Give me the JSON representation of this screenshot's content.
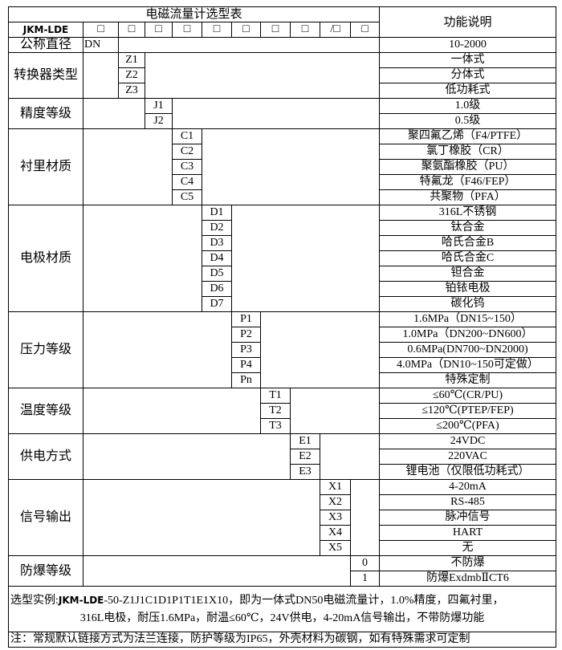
{
  "header": {
    "title": "电磁流量计选型表",
    "function_header": "功能说明",
    "model_prefix": "JKM-LDE",
    "boxes": [
      "□",
      "□",
      "□",
      "□",
      "□",
      "□",
      "□",
      "□",
      "/□",
      "□"
    ]
  },
  "sections": [
    {
      "label": "公称直径",
      "col": 0,
      "rows": [
        {
          "code": "DN",
          "desc": "10-2000"
        }
      ]
    },
    {
      "label": "转换器类型",
      "col": 1,
      "rows": [
        {
          "code": "Z1",
          "desc": "一体式"
        },
        {
          "code": "Z2",
          "desc": "分体式"
        },
        {
          "code": "Z3",
          "desc": "低功耗式"
        }
      ]
    },
    {
      "label": "精度等级",
      "col": 2,
      "rows": [
        {
          "code": "J1",
          "desc": "1.0级"
        },
        {
          "code": "J2",
          "desc": "0.5级"
        }
      ]
    },
    {
      "label": "衬里材质",
      "col": 3,
      "rows": [
        {
          "code": "C1",
          "desc": "聚四氟乙烯（F4/PTFE）"
        },
        {
          "code": "C2",
          "desc": "氯丁橡胶（CR）"
        },
        {
          "code": "C3",
          "desc": "聚氨酯橡胶（PU）"
        },
        {
          "code": "C4",
          "desc": "特氟龙（F46/FEP）"
        },
        {
          "code": "C5",
          "desc": "共聚物（PFA）"
        }
      ]
    },
    {
      "label": "电极材质",
      "col": 4,
      "rows": [
        {
          "code": "D1",
          "desc": "316L不锈钢"
        },
        {
          "code": "D2",
          "desc": "钛合金"
        },
        {
          "code": "D3",
          "desc": "哈氏合金B"
        },
        {
          "code": "D4",
          "desc": "哈氏合金C"
        },
        {
          "code": "D5",
          "desc": "钽合金"
        },
        {
          "code": "D6",
          "desc": "铂铱电极"
        },
        {
          "code": "D7",
          "desc": "碳化钨"
        }
      ]
    },
    {
      "label": "压力等级",
      "col": 5,
      "rows": [
        {
          "code": "P1",
          "desc": "1.6MPa（DN15~150）"
        },
        {
          "code": "P2",
          "desc": "1.0MPa（DN200~DN600）"
        },
        {
          "code": "P3",
          "desc": "0.6MPa(DN700~DN2000)"
        },
        {
          "code": "P4",
          "desc": "4.0MPa（DN10~150可定做）"
        },
        {
          "code": "Pn",
          "desc": "特殊定制"
        }
      ]
    },
    {
      "label": "温度等级",
      "col": 6,
      "rows": [
        {
          "code": "T1",
          "desc": "≤60℃(CR/PU)"
        },
        {
          "code": "T2",
          "desc": "≤120℃(PTEP/FEP)"
        },
        {
          "code": "T3",
          "desc": "≤200℃(PFA)"
        }
      ]
    },
    {
      "label": "供电方式",
      "col": 7,
      "rows": [
        {
          "code": "E1",
          "desc": "24VDC"
        },
        {
          "code": "E2",
          "desc": "220VAC"
        },
        {
          "code": "E3",
          "desc": "锂电池（仅限低功耗式）"
        }
      ]
    },
    {
      "label": "信号输出",
      "col": 8,
      "rows": [
        {
          "code": "X1",
          "desc": "4-20mA"
        },
        {
          "code": "X2",
          "desc": "RS-485"
        },
        {
          "code": "X3",
          "desc": "脉冲信号"
        },
        {
          "code": "X4",
          "desc": "HART"
        },
        {
          "code": "X5",
          "desc": "无"
        }
      ]
    },
    {
      "label": "防爆等级",
      "col": 9,
      "rows": [
        {
          "code": "0",
          "desc": "不防爆"
        },
        {
          "code": "1",
          "desc": "防爆ExdmbⅡCT6"
        }
      ]
    }
  ],
  "notes": {
    "example_label": "选型实例:",
    "example_brand": "JKM-LDE",
    "example_line1_rest": "-50-Z1J1C1D1P1T1E1X10，即为一体式DN50电磁流量计，1.0%精度，四氟衬里，",
    "example_line2": "316L电极，耐压1.6MPa，耐温≤60℃，24V供电，4-20mA信号输出，不带防爆功能",
    "note": "注：常规默认链接方式为法兰连接，防护等级为IP65，外壳材料为碳钢，如有特殊需求可定制"
  }
}
